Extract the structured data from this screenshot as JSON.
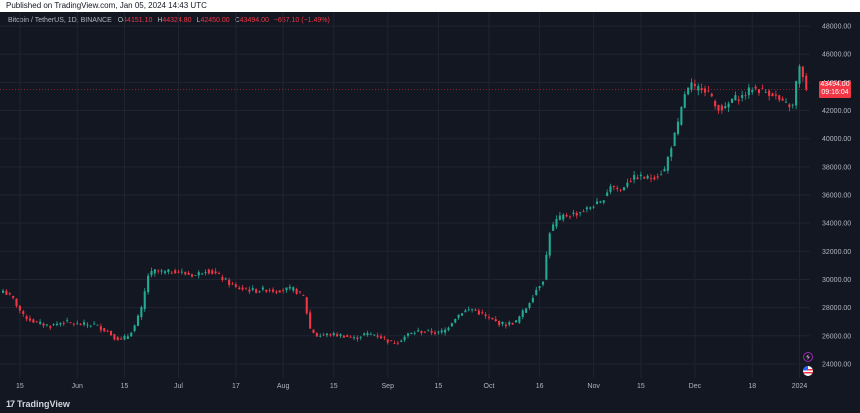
{
  "header": {
    "published": "Published on TradingView.com, Jan 05, 2024 14:43 UTC"
  },
  "legend": {
    "symbol": "Bitcoin / TetherUS, 1D, BINANCE",
    "open_label": "O",
    "open": "44151.10",
    "high_label": "H",
    "high": "44324.80",
    "low_label": "L",
    "low": "42450.00",
    "close_label": "C",
    "close": "43494.00",
    "change": "−657.10 (−1.49%)"
  },
  "price_tag": {
    "price": "43494.00",
    "countdown": "09:16:04"
  },
  "footer": {
    "brand": "TradingView",
    "logo_mark": "17"
  },
  "icons": {
    "lightning": "lightning-icon",
    "flag": "us-flag-icon"
  },
  "colors": {
    "up": "#22ab94",
    "down": "#f23645",
    "background": "#131722",
    "grid": "#1f2430",
    "text": "#b2b5be"
  },
  "chart_data": {
    "type": "candlestick",
    "symbol": "Bitcoin / TetherUS",
    "interval": "1D",
    "exchange": "BINANCE",
    "ylim": [
      23000,
      49000
    ],
    "y_ticks": [
      "24000.00",
      "26000.00",
      "28000.00",
      "30000.00",
      "32000.00",
      "34000.00",
      "36000.00",
      "38000.00",
      "40000.00",
      "42000.00",
      "44000.00",
      "46000.00",
      "48000.00"
    ],
    "y_tick_values": [
      24000,
      26000,
      28000,
      30000,
      32000,
      34000,
      36000,
      38000,
      40000,
      42000,
      44000,
      46000,
      48000
    ],
    "x_ticks": [
      "15",
      "Jun",
      "15",
      "Jul",
      "17",
      "Aug",
      "15",
      "Sep",
      "15",
      "Oct",
      "16",
      "Nov",
      "15",
      "Dec",
      "18",
      "2024"
    ],
    "x_tick_days": [
      5,
      22,
      36,
      52,
      69,
      83,
      98,
      114,
      129,
      144,
      159,
      175,
      189,
      205,
      222,
      236
    ],
    "last_price": 43494.0,
    "anchor_points": [
      [
        0,
        29200
      ],
      [
        3,
        28600
      ],
      [
        6,
        27400
      ],
      [
        10,
        26900
      ],
      [
        14,
        26700
      ],
      [
        18,
        27000
      ],
      [
        22,
        26800
      ],
      [
        27,
        26800
      ],
      [
        31,
        26300
      ],
      [
        33,
        25900
      ],
      [
        35,
        25700
      ],
      [
        37,
        26000
      ],
      [
        39,
        26700
      ],
      [
        41,
        27900
      ],
      [
        43,
        30300
      ],
      [
        45,
        30600
      ],
      [
        48,
        30500
      ],
      [
        51,
        30600
      ],
      [
        54,
        30400
      ],
      [
        57,
        30300
      ],
      [
        60,
        30700
      ],
      [
        63,
        30400
      ],
      [
        66,
        29900
      ],
      [
        69,
        29400
      ],
      [
        72,
        29300
      ],
      [
        75,
        29200
      ],
      [
        78,
        29300
      ],
      [
        81,
        29200
      ],
      [
        83,
        29300
      ],
      [
        86,
        29300
      ],
      [
        89,
        28800
      ],
      [
        91,
        26500
      ],
      [
        93,
        26000
      ],
      [
        97,
        26100
      ],
      [
        101,
        26000
      ],
      [
        104,
        25800
      ],
      [
        107,
        26100
      ],
      [
        110,
        26100
      ],
      [
        113,
        25800
      ],
      [
        115,
        25500
      ],
      [
        117,
        25600
      ],
      [
        120,
        26100
      ],
      [
        123,
        26300
      ],
      [
        126,
        26300
      ],
      [
        129,
        26200
      ],
      [
        131,
        26400
      ],
      [
        134,
        27300
      ],
      [
        136,
        27700
      ],
      [
        139,
        27900
      ],
      [
        142,
        27500
      ],
      [
        144,
        27200
      ],
      [
        147,
        26900
      ],
      [
        149,
        26800
      ],
      [
        152,
        27000
      ],
      [
        155,
        28000
      ],
      [
        158,
        29300
      ],
      [
        160,
        30000
      ],
      [
        162,
        33400
      ],
      [
        164,
        34200
      ],
      [
        166,
        34500
      ],
      [
        170,
        34700
      ],
      [
        173,
        35000
      ],
      [
        175,
        35300
      ],
      [
        177,
        35400
      ],
      [
        180,
        36700
      ],
      [
        183,
        36300
      ],
      [
        185,
        37000
      ],
      [
        188,
        37300
      ],
      [
        191,
        37200
      ],
      [
        194,
        37400
      ],
      [
        196,
        37800
      ],
      [
        198,
        39500
      ],
      [
        200,
        41000
      ],
      [
        202,
        43200
      ],
      [
        204,
        43800
      ],
      [
        205,
        43500
      ],
      [
        207,
        43700
      ],
      [
        209,
        43300
      ],
      [
        211,
        42300
      ],
      [
        214,
        42100
      ],
      [
        216,
        42800
      ],
      [
        219,
        43000
      ],
      [
        222,
        43600
      ],
      [
        225,
        43400
      ],
      [
        228,
        43200
      ],
      [
        231,
        42500
      ],
      [
        234,
        42300
      ],
      [
        235,
        44000
      ],
      [
        236,
        45000
      ],
      [
        237,
        44500
      ],
      [
        238,
        43494
      ]
    ]
  }
}
